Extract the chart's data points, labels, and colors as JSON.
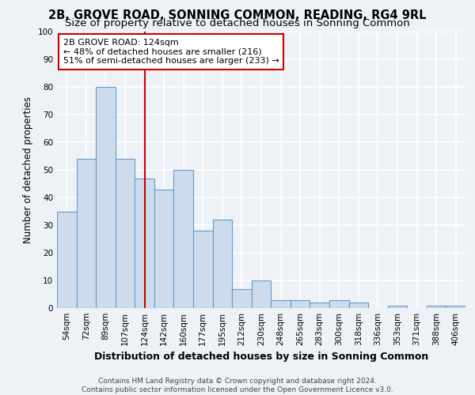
{
  "title": "2B, GROVE ROAD, SONNING COMMON, READING, RG4 9RL",
  "subtitle": "Size of property relative to detached houses in Sonning Common",
  "xlabel": "Distribution of detached houses by size in Sonning Common",
  "ylabel": "Number of detached properties",
  "footer_line1": "Contains HM Land Registry data © Crown copyright and database right 2024.",
  "footer_line2": "Contains public sector information licensed under the Open Government Licence v3.0.",
  "categories": [
    "54sqm",
    "72sqm",
    "89sqm",
    "107sqm",
    "124sqm",
    "142sqm",
    "160sqm",
    "177sqm",
    "195sqm",
    "212sqm",
    "230sqm",
    "248sqm",
    "265sqm",
    "283sqm",
    "300sqm",
    "318sqm",
    "336sqm",
    "353sqm",
    "371sqm",
    "388sqm",
    "406sqm"
  ],
  "values": [
    35,
    54,
    80,
    54,
    47,
    43,
    50,
    28,
    32,
    7,
    10,
    3,
    3,
    2,
    3,
    2,
    0,
    1,
    0,
    1,
    1
  ],
  "bar_color": "#ccdcec",
  "bar_edge_color": "#6699cc",
  "vline_x": 4,
  "vline_color": "#cc0000",
  "annotation_text": "2B GROVE ROAD: 124sqm\n← 48% of detached houses are smaller (216)\n51% of semi-detached houses are larger (233) →",
  "annotation_box_color": "#ffffff",
  "annotation_edge_color": "#cc0000",
  "ylim": [
    0,
    100
  ],
  "yticks": [
    0,
    10,
    20,
    30,
    40,
    50,
    60,
    70,
    80,
    90,
    100
  ],
  "background_color": "#eef2f7",
  "grid_color": "#ffffff",
  "title_fontsize": 10.5,
  "subtitle_fontsize": 9.5,
  "xlabel_fontsize": 9,
  "ylabel_fontsize": 8.5,
  "tick_fontsize": 7.5,
  "annotation_fontsize": 8,
  "footer_fontsize": 6.5
}
